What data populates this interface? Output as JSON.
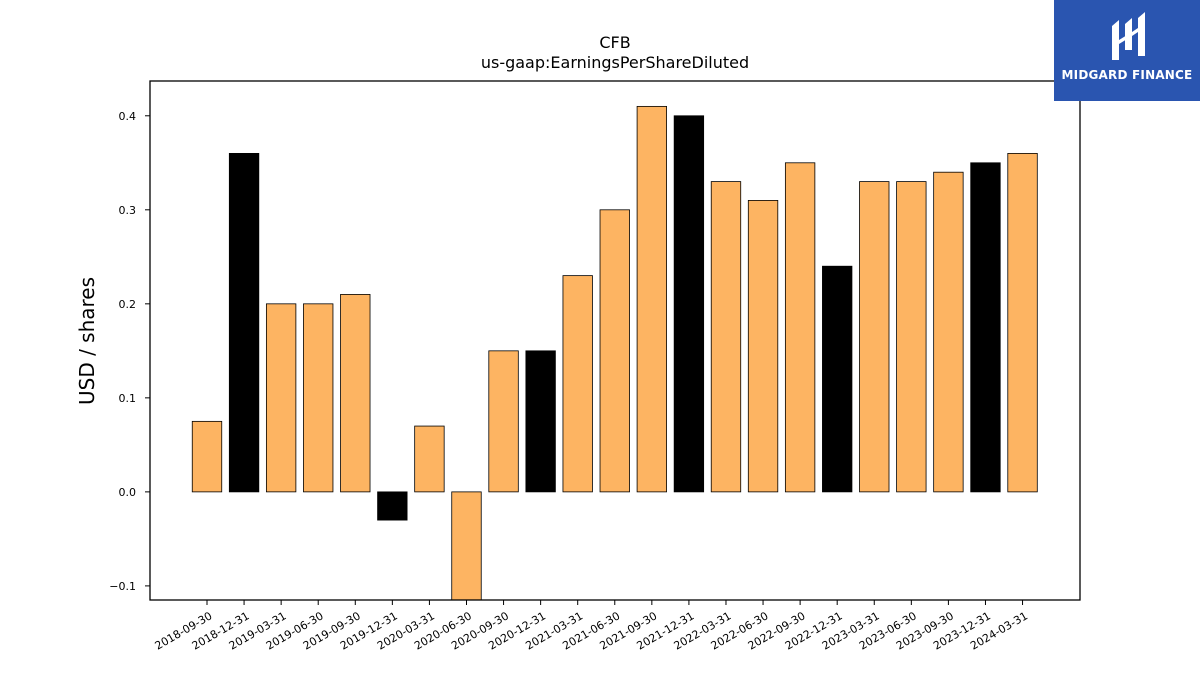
{
  "brand": {
    "name": "MIDGARD FINANCE",
    "color": "#2a55b0"
  },
  "chart_data": {
    "type": "bar",
    "title": "CFB",
    "subtitle": "us-gaap:EarningsPerShareDiluted",
    "xlabel": "",
    "ylabel": "USD / shares",
    "ylim": [
      -0.115,
      0.437
    ],
    "yticks": [
      -0.1,
      0.0,
      0.1,
      0.2,
      0.3,
      0.4
    ],
    "ytick_labels": [
      "−0.1",
      "0.0",
      "0.1",
      "0.2",
      "0.3",
      "0.4"
    ],
    "grid": false,
    "legend": "none",
    "colors": {
      "quarter": "#fdb462",
      "year_end": "#000000",
      "edge": "#000000"
    },
    "categories": [
      "2018-09-30",
      "2018-12-31",
      "2019-03-31",
      "2019-06-30",
      "2019-09-30",
      "2019-12-31",
      "2020-03-31",
      "2020-06-30",
      "2020-09-30",
      "2020-12-31",
      "2021-03-31",
      "2021-06-30",
      "2021-09-30",
      "2021-12-31",
      "2022-03-31",
      "2022-06-30",
      "2022-09-30",
      "2022-12-31",
      "2023-03-31",
      "2023-06-30",
      "2023-09-30",
      "2023-12-31",
      "2024-03-31"
    ],
    "values": [
      0.075,
      0.36,
      0.2,
      0.2,
      0.21,
      -0.03,
      0.07,
      -0.12,
      0.15,
      0.15,
      0.23,
      0.3,
      0.41,
      0.4,
      0.33,
      0.31,
      0.35,
      0.24,
      0.33,
      0.33,
      0.34,
      0.35,
      0.36
    ],
    "bar_colors": [
      "quarter",
      "year_end",
      "quarter",
      "quarter",
      "quarter",
      "year_end",
      "quarter",
      "quarter",
      "quarter",
      "year_end",
      "quarter",
      "quarter",
      "quarter",
      "year_end",
      "quarter",
      "quarter",
      "quarter",
      "year_end",
      "quarter",
      "quarter",
      "quarter",
      "year_end",
      "quarter"
    ]
  }
}
